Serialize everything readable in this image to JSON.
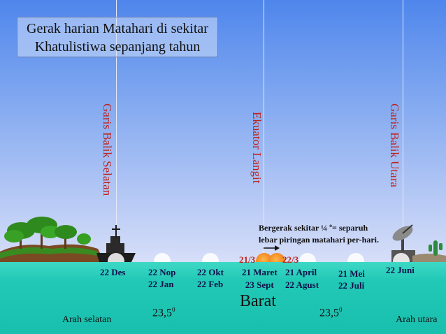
{
  "title": {
    "line1": "Gerak harian Matahari di sekitar",
    "line2": "Khatulistiwa sepanjang tahun"
  },
  "vertical_labels": {
    "south": "Garis Balik Selatan",
    "equator": "Ekuator Langit",
    "north": "Garis Balik Utara"
  },
  "note": {
    "line1": "Bergerak sekitar ¼ º= separuh",
    "line2": "lebar piringan matahari per-hari."
  },
  "equinox_labels": {
    "left": "21/3",
    "right": "22/3"
  },
  "dates": {
    "d1": [
      "22 Des",
      ""
    ],
    "d2": [
      "22 Nop",
      "22 Jan"
    ],
    "d3": [
      "22 Okt",
      "22 Feb"
    ],
    "d4": [
      "21 Maret",
      "23 Sept"
    ],
    "d5": [
      "21 April",
      "22 Agust"
    ],
    "d6": [
      "21 Mei",
      "22 Juli"
    ],
    "d7": [
      "22 Juni",
      ""
    ]
  },
  "direction": {
    "center": "Barat",
    "left": "Arah selatan",
    "right": "Arah utara"
  },
  "angles": {
    "left": "23,5",
    "right": "23,5",
    "unit": "0"
  },
  "colors": {
    "label_red": "#c0221c",
    "sea": "#22c9b6",
    "sun": "#f07f1c",
    "date_text": "#10104a"
  }
}
